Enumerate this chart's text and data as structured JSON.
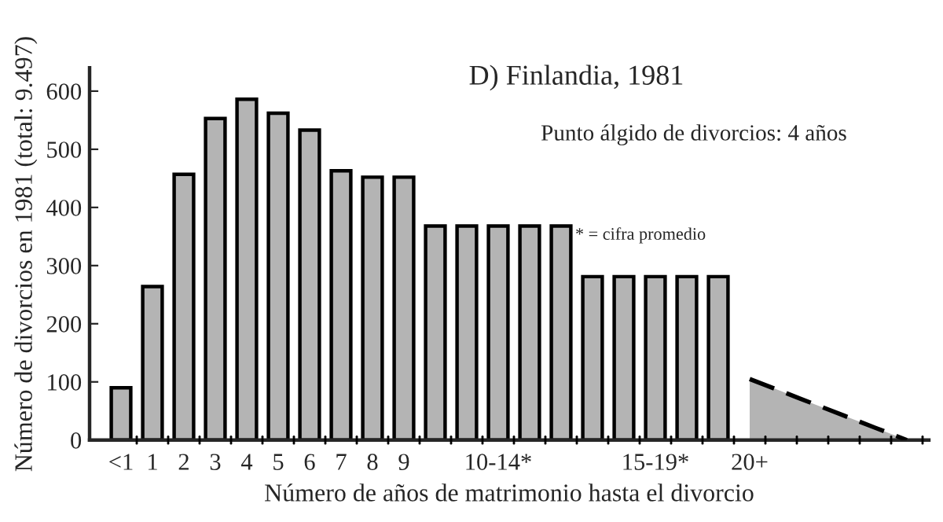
{
  "chart_data": {
    "type": "bar",
    "title": "D) Finlandia, 1981",
    "xlabel": "Número de años de matrimonio hasta el divorcio",
    "ylabel": "Número de divorcios en 1981 (total: 9.497)",
    "annotations": [
      "Punto álgido de divorcios: 4 años",
      "* = cifra promedio"
    ],
    "categories": [
      "<1",
      "1",
      "2",
      "3",
      "4",
      "5",
      "6",
      "7",
      "8",
      "9",
      null,
      null,
      "10-14*",
      null,
      null,
      null,
      null,
      "15-19*",
      null,
      null,
      "20+",
      null,
      null,
      null,
      null,
      null
    ],
    "series": [
      {
        "color": "#b4b4b4",
        "values": [
          90,
          264,
          457,
          553,
          586,
          562,
          533,
          463,
          452,
          452,
          368,
          368,
          368,
          368,
          368,
          281,
          281,
          281,
          281,
          281,
          null,
          null,
          null,
          null,
          null,
          null
        ]
      },
      {
        "type": "area",
        "color": "#b4b4b4",
        "line_style": "dashed",
        "values": [
          null,
          null,
          null,
          null,
          null,
          null,
          null,
          null,
          null,
          null,
          null,
          null,
          null,
          null,
          null,
          null,
          null,
          null,
          null,
          null,
          105,
          84,
          63,
          42,
          21,
          0
        ]
      }
    ],
    "ylim": [
      0,
      640
    ],
    "yticks": [
      0,
      100,
      200,
      300,
      400,
      500,
      600
    ],
    "grid": false,
    "legend": false
  }
}
